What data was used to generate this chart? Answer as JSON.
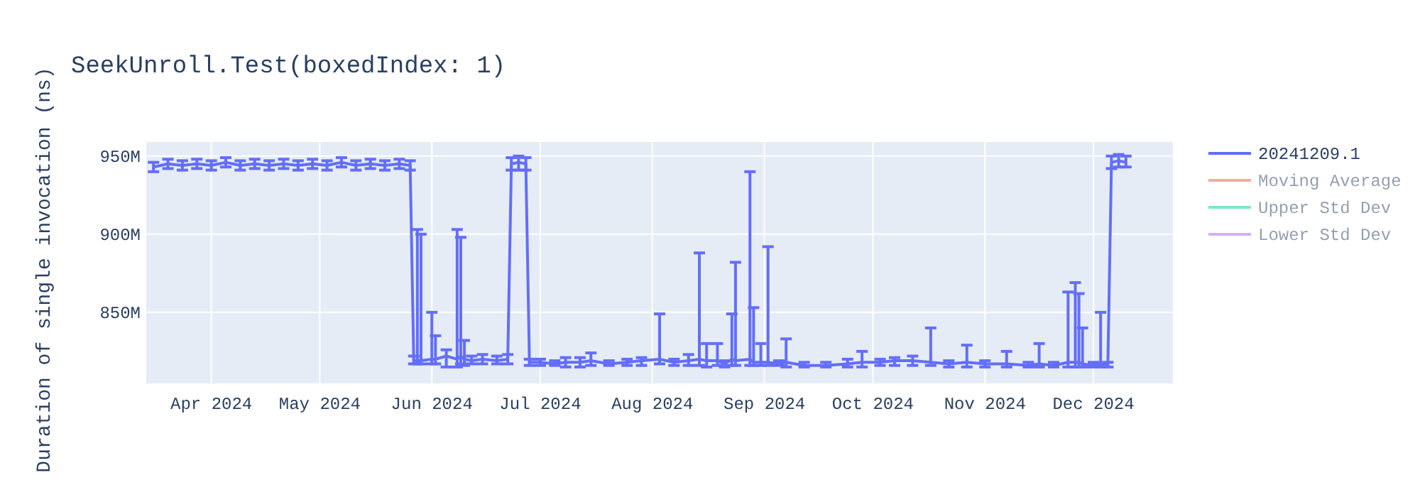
{
  "chart_data": {
    "type": "line",
    "title": "SeekUnroll.Test(boxedIndex: 1)",
    "ylabel": "Duration of single invocation (ns)",
    "x": [
      "2024-03-16",
      "2024-03-20",
      "2024-03-24",
      "2024-03-28",
      "2024-04-01",
      "2024-04-05",
      "2024-04-09",
      "2024-04-13",
      "2024-04-17",
      "2024-04-21",
      "2024-04-25",
      "2024-04-29",
      "2024-05-03",
      "2024-05-07",
      "2024-05-11",
      "2024-05-15",
      "2024-05-19",
      "2024-05-23",
      "2024-05-26",
      "2024-05-27",
      "2024-05-28",
      "2024-05-29",
      "2024-06-01",
      "2024-06-02",
      "2024-06-05",
      "2024-06-08",
      "2024-06-09",
      "2024-06-10",
      "2024-06-12",
      "2024-06-15",
      "2024-06-19",
      "2024-06-22",
      "2024-06-23",
      "2024-06-25",
      "2024-06-27",
      "2024-06-28",
      "2024-07-01",
      "2024-07-05",
      "2024-07-08",
      "2024-07-12",
      "2024-07-15",
      "2024-07-20",
      "2024-07-25",
      "2024-07-29",
      "2024-08-03",
      "2024-08-07",
      "2024-08-11",
      "2024-08-14",
      "2024-08-16",
      "2024-08-19",
      "2024-08-21",
      "2024-08-23",
      "2024-08-24",
      "2024-08-28",
      "2024-08-29",
      "2024-08-31",
      "2024-09-02",
      "2024-09-05",
      "2024-09-07",
      "2024-09-12",
      "2024-09-18",
      "2024-09-24",
      "2024-09-28",
      "2024-10-03",
      "2024-10-07",
      "2024-10-12",
      "2024-10-17",
      "2024-10-22",
      "2024-10-27",
      "2024-11-01",
      "2024-11-07",
      "2024-11-13",
      "2024-11-16",
      "2024-11-20",
      "2024-11-24",
      "2024-11-26",
      "2024-11-27",
      "2024-11-28",
      "2024-12-01",
      "2024-12-03",
      "2024-12-05",
      "2024-12-06",
      "2024-12-08",
      "2024-12-10"
    ],
    "series": [
      {
        "name": "20241209.1",
        "color": "#636efa",
        "values": [
          943000000,
          945000000,
          944000000,
          945000000,
          944000000,
          946000000,
          944000000,
          945000000,
          944000000,
          945000000,
          944000000,
          945000000,
          944000000,
          946000000,
          944000000,
          945000000,
          944000000,
          945000000,
          944000000,
          819000000,
          819000000,
          819000000,
          820000000,
          820000000,
          822000000,
          820000000,
          822000000,
          820000000,
          819000000,
          820000000,
          819000000,
          820000000,
          945000000,
          946000000,
          945000000,
          818000000,
          818000000,
          817000000,
          818000000,
          818000000,
          819000000,
          817000000,
          818000000,
          819000000,
          820000000,
          818000000,
          819000000,
          820000000,
          819000000,
          819000000,
          817000000,
          820000000,
          819000000,
          820000000,
          818000000,
          818000000,
          818000000,
          817000000,
          818000000,
          816000000,
          816000000,
          817000000,
          818000000,
          818000000,
          819000000,
          819000000,
          818000000,
          817000000,
          818000000,
          817000000,
          817000000,
          816000000,
          817000000,
          816000000,
          818000000,
          818000000,
          818000000,
          817000000,
          816000000,
          817000000,
          816000000,
          946000000,
          947000000,
          946000000
        ],
        "errors": [
          [
            940000000,
            946000000
          ],
          [
            942000000,
            948000000
          ],
          [
            941000000,
            947000000
          ],
          [
            942000000,
            948000000
          ],
          [
            941000000,
            947000000
          ],
          [
            943000000,
            949000000
          ],
          [
            941000000,
            947000000
          ],
          [
            942000000,
            948000000
          ],
          [
            941000000,
            947000000
          ],
          [
            942000000,
            948000000
          ],
          [
            941000000,
            947000000
          ],
          [
            942000000,
            948000000
          ],
          [
            941000000,
            947000000
          ],
          [
            943000000,
            949000000
          ],
          [
            941000000,
            947000000
          ],
          [
            942000000,
            948000000
          ],
          [
            941000000,
            947000000
          ],
          [
            942000000,
            948000000
          ],
          [
            941000000,
            947000000
          ],
          [
            817000000,
            822000000
          ],
          [
            817000000,
            903000000
          ],
          [
            817000000,
            900000000
          ],
          [
            817000000,
            850000000
          ],
          [
            817000000,
            835000000
          ],
          [
            815000000,
            826000000
          ],
          [
            815000000,
            903000000
          ],
          [
            817000000,
            898000000
          ],
          [
            816000000,
            832000000
          ],
          [
            817000000,
            822000000
          ],
          [
            817000000,
            823000000
          ],
          [
            817000000,
            822000000
          ],
          [
            817000000,
            823000000
          ],
          [
            941000000,
            949000000
          ],
          [
            941000000,
            950000000
          ],
          [
            941000000,
            949000000
          ],
          [
            816000000,
            820000000
          ],
          [
            816000000,
            820000000
          ],
          [
            816000000,
            819000000
          ],
          [
            815000000,
            821000000
          ],
          [
            815000000,
            821000000
          ],
          [
            816000000,
            824000000
          ],
          [
            816000000,
            819000000
          ],
          [
            816000000,
            820000000
          ],
          [
            816000000,
            821000000
          ],
          [
            817000000,
            849000000
          ],
          [
            816000000,
            820000000
          ],
          [
            816000000,
            823000000
          ],
          [
            816000000,
            888000000
          ],
          [
            815000000,
            830000000
          ],
          [
            816000000,
            830000000
          ],
          [
            815000000,
            819000000
          ],
          [
            816000000,
            849000000
          ],
          [
            816000000,
            882000000
          ],
          [
            816000000,
            940000000
          ],
          [
            816000000,
            853000000
          ],
          [
            816000000,
            830000000
          ],
          [
            816000000,
            892000000
          ],
          [
            816000000,
            819000000
          ],
          [
            815000000,
            833000000
          ],
          [
            815000000,
            818000000
          ],
          [
            815000000,
            818000000
          ],
          [
            815000000,
            820000000
          ],
          [
            815000000,
            825000000
          ],
          [
            816000000,
            820000000
          ],
          [
            816000000,
            821000000
          ],
          [
            816000000,
            822000000
          ],
          [
            816000000,
            840000000
          ],
          [
            815000000,
            819000000
          ],
          [
            815000000,
            829000000
          ],
          [
            815000000,
            819000000
          ],
          [
            815000000,
            825000000
          ],
          [
            815000000,
            818000000
          ],
          [
            815000000,
            830000000
          ],
          [
            815000000,
            818000000
          ],
          [
            815000000,
            863000000
          ],
          [
            815000000,
            869000000
          ],
          [
            815000000,
            862000000
          ],
          [
            815000000,
            840000000
          ],
          [
            815000000,
            818000000
          ],
          [
            815000000,
            850000000
          ],
          [
            815000000,
            818000000
          ],
          [
            942000000,
            950000000
          ],
          [
            943000000,
            951000000
          ],
          [
            943000000,
            950000000
          ]
        ]
      },
      {
        "name": "Moving Average",
        "color": "#ef553b",
        "values": [
          null,
          null,
          null,
          null,
          null,
          null,
          null,
          null,
          null,
          null,
          null,
          null,
          null,
          null,
          null,
          null,
          null,
          null,
          null,
          null,
          null,
          null,
          null,
          null,
          null,
          null,
          null,
          null,
          null,
          null,
          null,
          null,
          null,
          null,
          null,
          null,
          null,
          null,
          null,
          null,
          null,
          null,
          null,
          null,
          null,
          null,
          null,
          null,
          null,
          null,
          null,
          null,
          null,
          null,
          null,
          null,
          null,
          null,
          null,
          null,
          null,
          null,
          null,
          null,
          null,
          null,
          null,
          null,
          null,
          null,
          null,
          null,
          null,
          null,
          null,
          null,
          null,
          null,
          null,
          null,
          null,
          null,
          null,
          null
        ]
      },
      {
        "name": "Upper Std Dev",
        "color": "#00cc96",
        "values": [
          null,
          null,
          null,
          null,
          null,
          null,
          null,
          null,
          null,
          null,
          null,
          null,
          null,
          null,
          null,
          null,
          null,
          null,
          null,
          null,
          null,
          null,
          null,
          null,
          null,
          null,
          null,
          null,
          null,
          null,
          null,
          null,
          null,
          null,
          null,
          null,
          null,
          null,
          null,
          null,
          null,
          null,
          null,
          null,
          null,
          null,
          null,
          null,
          null,
          null,
          null,
          null,
          null,
          null,
          null,
          null,
          null,
          null,
          null,
          null,
          null,
          null,
          null,
          null,
          null,
          null,
          null,
          null,
          null,
          null,
          null,
          null,
          null,
          null,
          null,
          null,
          null,
          null,
          null,
          null,
          null,
          null,
          null,
          null
        ]
      },
      {
        "name": "Lower Std Dev",
        "color": "#ab63fa",
        "values": [
          null,
          null,
          null,
          null,
          null,
          null,
          null,
          null,
          null,
          null,
          null,
          null,
          null,
          null,
          null,
          null,
          null,
          null,
          null,
          null,
          null,
          null,
          null,
          null,
          null,
          null,
          null,
          null,
          null,
          null,
          null,
          null,
          null,
          null,
          null,
          null,
          null,
          null,
          null,
          null,
          null,
          null,
          null,
          null,
          null,
          null,
          null,
          null,
          null,
          null,
          null,
          null,
          null,
          null,
          null,
          null,
          null,
          null,
          null,
          null,
          null,
          null,
          null,
          null,
          null,
          null,
          null,
          null,
          null,
          null,
          null,
          null,
          null,
          null,
          null,
          null,
          null,
          null,
          null,
          null,
          null,
          null,
          null,
          null
        ]
      }
    ],
    "xlim": [
      "2024-03-14",
      "2024-12-23"
    ],
    "xticks": [
      {
        "value": "2024-04-01",
        "label": "Apr 2024"
      },
      {
        "value": "2024-05-01",
        "label": "May 2024"
      },
      {
        "value": "2024-06-01",
        "label": "Jun 2024"
      },
      {
        "value": "2024-07-01",
        "label": "Jul 2024"
      },
      {
        "value": "2024-08-01",
        "label": "Aug 2024"
      },
      {
        "value": "2024-09-01",
        "label": "Sep 2024"
      },
      {
        "value": "2024-10-01",
        "label": "Oct 2024"
      },
      {
        "value": "2024-11-01",
        "label": "Nov 2024"
      },
      {
        "value": "2024-12-01",
        "label": "Dec 2024"
      }
    ],
    "ylim": [
      804500000,
      959000000
    ],
    "yticks": [
      {
        "value": 850000000,
        "label": "850M"
      },
      {
        "value": 900000000,
        "label": "900M"
      },
      {
        "value": 950000000,
        "label": "950M"
      }
    ],
    "grid": true,
    "legend": "top right",
    "line_style": "solid"
  }
}
